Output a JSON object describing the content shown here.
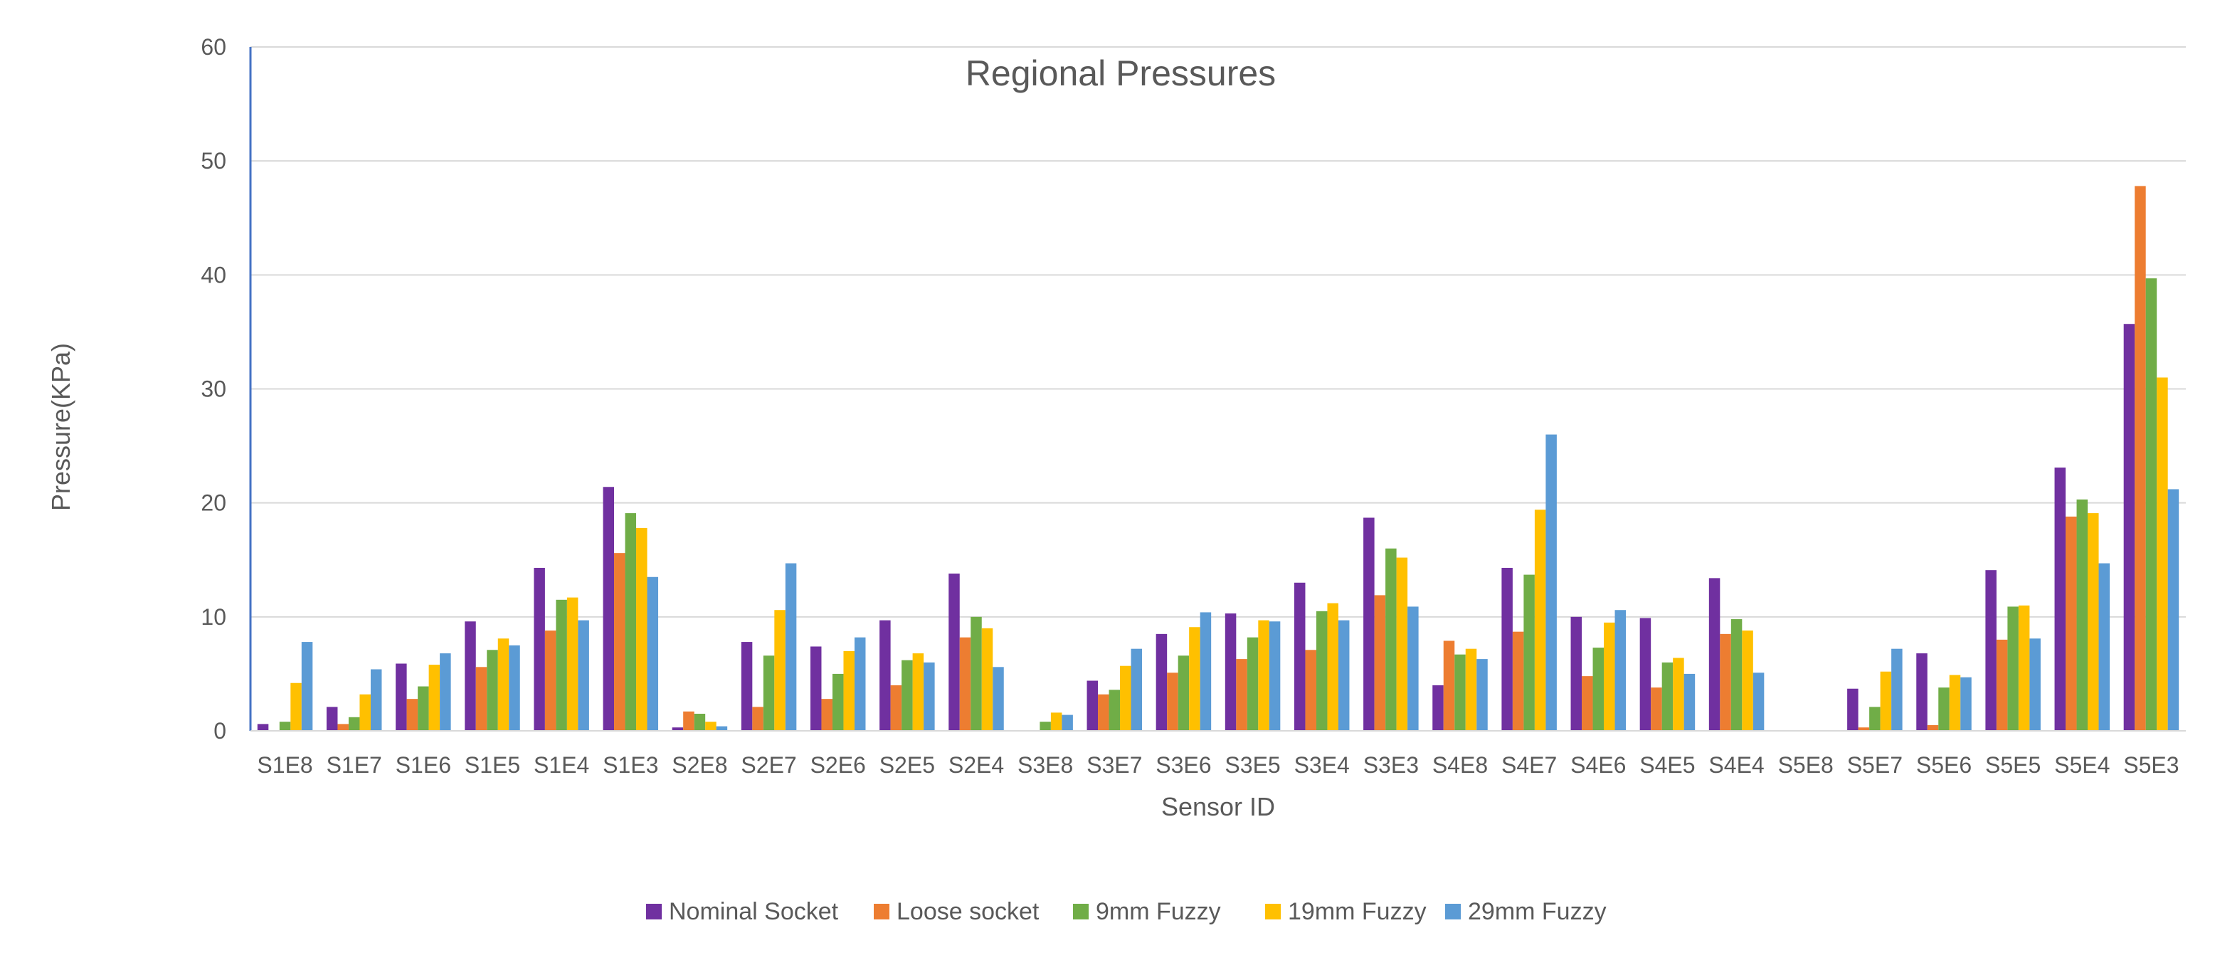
{
  "chart_data": {
    "type": "bar",
    "title": "Regional Pressures",
    "xlabel": "Sensor ID",
    "ylabel": "Pressure(KPa)",
    "ylim": [
      0,
      60
    ],
    "yticks": [
      0,
      10,
      20,
      30,
      40,
      50,
      60
    ],
    "grid": true,
    "legend_position": "bottom",
    "categories": [
      "S1E8",
      "S1E7",
      "S1E6",
      "S1E5",
      "S1E4",
      "S1E3",
      "S2E8",
      "S2E7",
      "S2E6",
      "S2E5",
      "S2E4",
      "S3E8",
      "S3E7",
      "S3E6",
      "S3E5",
      "S3E4",
      "S3E3",
      "S4E8",
      "S4E7",
      "S4E6",
      "S4E5",
      "S4E4",
      "S5E8",
      "S5E7",
      "S5E6",
      "S5E5",
      "S5E4",
      "S5E3"
    ],
    "series": [
      {
        "name": "Nominal Socket",
        "color": "#7030A0",
        "values": [
          0.6,
          2.1,
          5.9,
          9.6,
          14.3,
          21.4,
          0.3,
          7.8,
          7.4,
          9.7,
          13.8,
          0,
          4.4,
          8.5,
          10.3,
          13,
          18.7,
          4,
          14.3,
          10,
          9.9,
          13.4,
          0,
          3.7,
          6.8,
          14.1,
          23.1,
          35.7
        ]
      },
      {
        "name": "Loose socket",
        "color": "#ED7D31",
        "values": [
          0,
          0.6,
          2.8,
          5.6,
          8.8,
          15.6,
          1.7,
          2.1,
          2.8,
          4,
          8.2,
          0,
          3.2,
          5.1,
          6.3,
          7.1,
          11.9,
          7.9,
          8.7,
          4.8,
          3.8,
          8.5,
          0,
          0.3,
          0.5,
          8,
          18.8,
          47.8
        ]
      },
      {
        "name": "9mm Fuzzy",
        "color": "#70AD47",
        "values": [
          0.8,
          1.2,
          3.9,
          7.1,
          11.5,
          19.1,
          1.5,
          6.6,
          5,
          6.2,
          10,
          0.8,
          3.6,
          6.6,
          8.2,
          10.5,
          16,
          6.7,
          13.7,
          7.3,
          6,
          9.8,
          0,
          2.1,
          3.8,
          10.9,
          20.3,
          39.7
        ]
      },
      {
        "name": "19mm Fuzzy",
        "color": "#FFC000",
        "values": [
          4.2,
          3.2,
          5.8,
          8.1,
          11.7,
          17.8,
          0.8,
          10.6,
          7,
          6.8,
          9,
          1.6,
          5.7,
          9.1,
          9.7,
          11.2,
          15.2,
          7.2,
          19.4,
          9.5,
          6.4,
          8.8,
          0,
          5.2,
          4.9,
          11,
          19.1,
          31
        ]
      },
      {
        "name": "29mm Fuzzy",
        "color": "#5B9BD5",
        "values": [
          7.8,
          5.4,
          6.8,
          7.5,
          9.7,
          13.5,
          0.4,
          14.7,
          8.2,
          6,
          5.6,
          1.4,
          7.2,
          10.4,
          9.6,
          9.7,
          10.9,
          6.3,
          26,
          10.6,
          5,
          5.1,
          0,
          7.2,
          4.7,
          8.1,
          14.7,
          21.2
        ]
      }
    ]
  }
}
